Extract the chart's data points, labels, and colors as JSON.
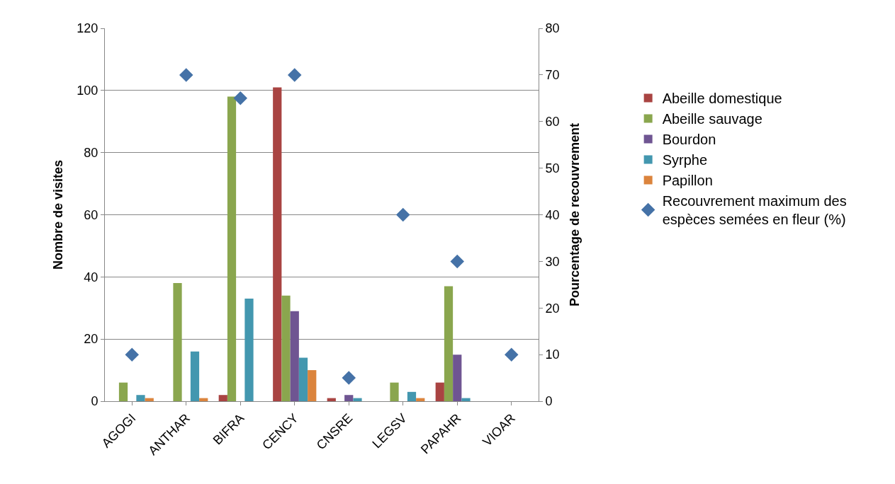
{
  "chart_data": {
    "type": "bar",
    "categories": [
      "AGOGI",
      "ANTHAR",
      "BIFRA",
      "CENCY",
      "CNSRE",
      "LEGSV",
      "PAPAHR",
      "VIOAR"
    ],
    "series": [
      {
        "name": "Abeille domestique",
        "color": "#a94442",
        "values": [
          0,
          0,
          2,
          101,
          1,
          0,
          6,
          0
        ]
      },
      {
        "name": "Abeille sauvage",
        "color": "#8aa64e",
        "values": [
          6,
          38,
          98,
          34,
          0,
          6,
          37,
          0
        ]
      },
      {
        "name": "Bourdon",
        "color": "#6f5592",
        "values": [
          0,
          0,
          0,
          29,
          2,
          0,
          15,
          0
        ]
      },
      {
        "name": "Syrphe",
        "color": "#4397af",
        "values": [
          2,
          16,
          33,
          14,
          1,
          3,
          1,
          0
        ]
      },
      {
        "name": "Papillon",
        "color": "#db843d",
        "values": [
          1,
          1,
          0,
          10,
          0,
          1,
          0,
          0
        ]
      },
      {
        "name": "Recouvrement maximum des espèces semées en fleur (%)",
        "color": "#4572a7",
        "type": "scatter",
        "axis": "y2",
        "marker": "diamond",
        "values": [
          10,
          70,
          65,
          70,
          5,
          40,
          30,
          10
        ]
      }
    ],
    "ylabel": "Nombre de visites",
    "y2label": "Pourcentage de recouvrement",
    "ylim": [
      0,
      120
    ],
    "yticks": [
      0,
      20,
      40,
      60,
      80,
      100,
      120
    ],
    "y2lim": [
      0,
      80
    ],
    "y2ticks": [
      0,
      10,
      20,
      30,
      40,
      50,
      60,
      70,
      80
    ],
    "grid": "y",
    "legend": "right"
  }
}
